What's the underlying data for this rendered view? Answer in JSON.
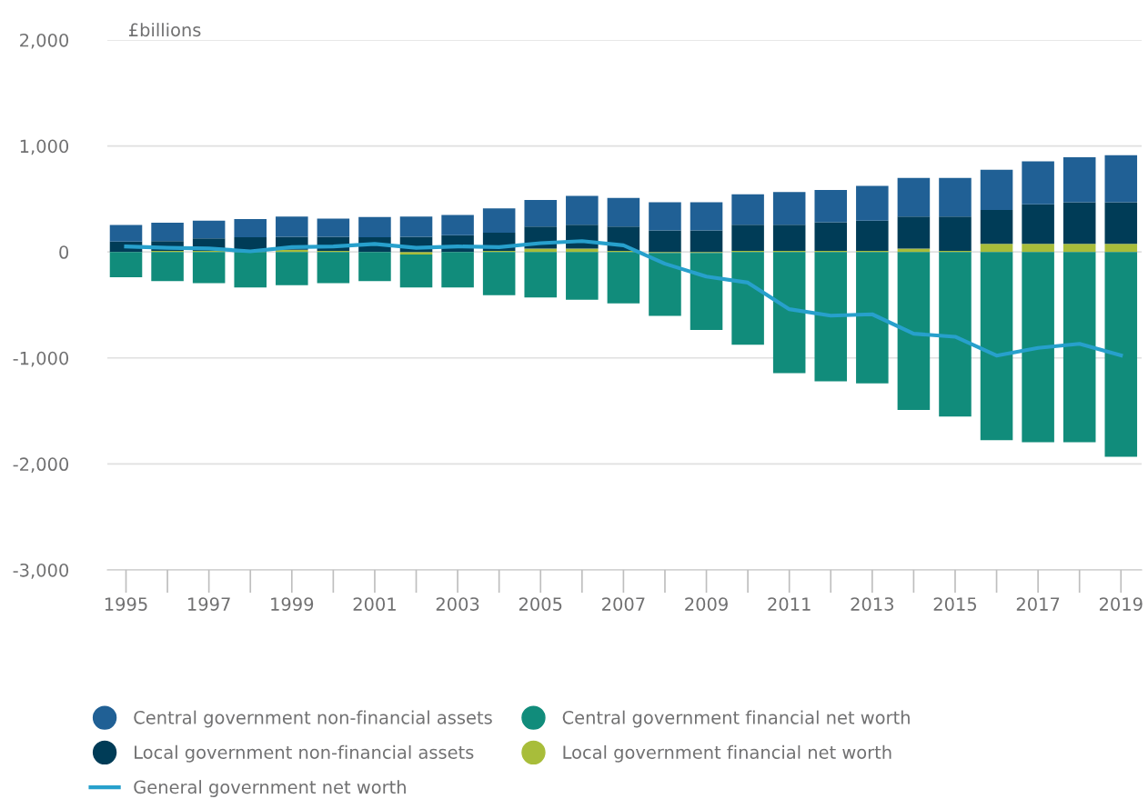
{
  "chart_data": {
    "type": "bar",
    "stacked": true,
    "ylabel": "£billions",
    "categories": [
      "1995",
      null,
      "1997",
      null,
      "1999",
      null,
      "2001",
      null,
      "2003",
      null,
      "2005",
      null,
      "2007",
      null,
      "2009",
      null,
      "2011",
      null,
      "2013",
      null,
      "2015",
      null,
      "2017",
      null,
      "2019"
    ],
    "series": [
      {
        "name": "Local government financial net worth",
        "color": "#a8bd3a",
        "values": [
          null,
          10,
          10,
          null,
          20,
          10,
          null,
          -25,
          null,
          10,
          32,
          32,
          10,
          -10,
          -10,
          10,
          10,
          10,
          10,
          32,
          10,
          76,
          76,
          76,
          76
        ]
      },
      {
        "name": "Local government non-financial assets",
        "color": "#003c57",
        "values": [
          97,
          92,
          117,
          139,
          124,
          134,
          139,
          144,
          157,
          171,
          207,
          225,
          229,
          203,
          203,
          247,
          247,
          271,
          286,
          302,
          324,
          319,
          373,
          392,
          392
        ]
      },
      {
        "name": "Central government non-financial assets",
        "color": "#206095",
        "values": [
          158,
          175,
          169,
          171,
          190,
          171,
          190,
          190,
          191,
          229,
          251,
          271,
          270,
          265,
          265,
          287,
          309,
          304,
          327,
          365,
          365,
          381,
          406,
          425,
          444
        ]
      },
      {
        "name": "Central government financial net worth",
        "color": "#118c7b",
        "values": [
          -238,
          -276,
          -295,
          -334,
          -314,
          -295,
          -276,
          -309,
          -334,
          -409,
          -429,
          -451,
          -485,
          -593,
          -727,
          -875,
          -1144,
          -1220,
          -1239,
          -1490,
          -1552,
          -1776,
          -1796,
          -1796,
          -1932
        ]
      },
      {
        "name": "General government net worth",
        "type": "line",
        "color": "#27a0cc",
        "values": [
          52,
          39,
          32,
          6,
          45,
          52,
          76,
          39,
          52,
          45,
          83,
          102,
          63,
          -111,
          -232,
          -289,
          -540,
          -601,
          -588,
          -772,
          -800,
          -978,
          -905,
          -867,
          -976
        ]
      }
    ],
    "ylim": [
      -3000,
      2000
    ],
    "yticks": [
      {
        "value": -3000,
        "label": "-3,000"
      },
      {
        "value": -2000,
        "label": "-2,000"
      },
      {
        "value": -1000,
        "label": "-1,000"
      },
      0,
      {
        "value": 1000,
        "label": "1,000"
      },
      {
        "value": 2000,
        "label": "2,000"
      }
    ],
    "grid": "y",
    "legend": "bottom"
  }
}
